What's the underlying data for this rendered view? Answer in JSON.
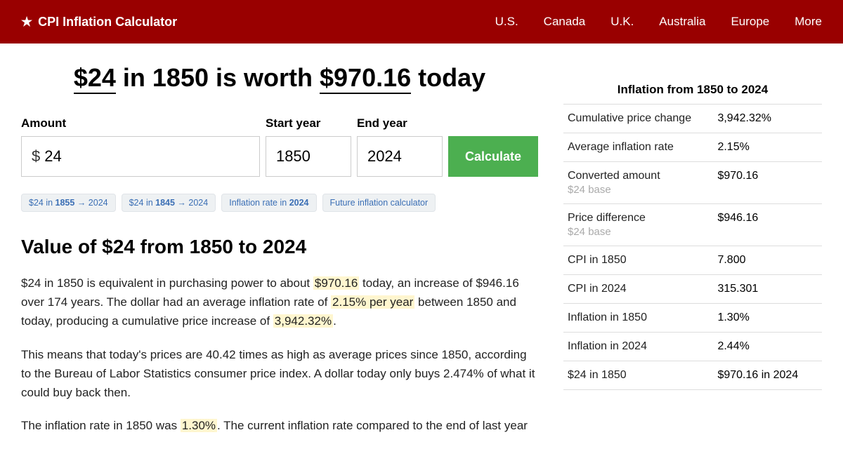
{
  "header": {
    "logo_text": "CPI Inflation Calculator",
    "nav": [
      "U.S.",
      "Canada",
      "U.K.",
      "Australia",
      "Europe",
      "More"
    ]
  },
  "title": {
    "amount": "$24",
    "mid": " in 1850 is worth ",
    "result": "$970.16",
    "tail": " today"
  },
  "form": {
    "amount_label": "Amount",
    "amount_value": "24",
    "start_label": "Start year",
    "start_value": "1850",
    "end_label": "End year",
    "end_value": "2024",
    "button": "Calculate"
  },
  "chips": [
    {
      "pre": "$24 in ",
      "bold": "1855",
      "post": " → 2024"
    },
    {
      "pre": "$24 in ",
      "bold": "1845",
      "post": " → 2024"
    },
    {
      "pre": "Inflation rate in ",
      "bold": "2024",
      "post": ""
    },
    {
      "pre": "Future inflation calculator",
      "bold": "",
      "post": ""
    }
  ],
  "section_title": "Value of $24 from 1850 to 2024",
  "para1": {
    "a": "$24 in 1850 is equivalent in purchasing power to about ",
    "h1": "$970.16",
    "b": " today, an increase of $946.16 over 174 years. The dollar had an average inflation rate of ",
    "h2": "2.15% per year",
    "c": " between 1850 and today, producing a cumulative price increase of ",
    "h3": "3,942.32%",
    "d": "."
  },
  "para2": "This means that today's prices are 40.42 times as high as average prices since 1850, according to the Bureau of Labor Statistics consumer price index. A dollar today only buys 2.474% of what it could buy back then.",
  "para3": {
    "a": "The inflation rate in 1850 was ",
    "h1": "1.30%",
    "b": ". The current inflation rate compared to the end of last year"
  },
  "sidebar": {
    "title": "Inflation from 1850 to 2024",
    "rows": [
      {
        "label": "Cumulative price change",
        "sublabel": "",
        "value": "3,942.32%"
      },
      {
        "label": "Average inflation rate",
        "sublabel": "",
        "value": "2.15%"
      },
      {
        "label": "Converted amount",
        "sublabel": "$24 base",
        "value": "$970.16"
      },
      {
        "label": "Price difference",
        "sublabel": "$24 base",
        "value": "$946.16"
      },
      {
        "label": "CPI in 1850",
        "sublabel": "",
        "value": "7.800"
      },
      {
        "label": "CPI in 2024",
        "sublabel": "",
        "value": "315.301"
      },
      {
        "label": "Inflation in 1850",
        "sublabel": "",
        "value": "1.30%"
      },
      {
        "label": "Inflation in 2024",
        "sublabel": "",
        "value": "2.44%"
      },
      {
        "label": "$24 in 1850",
        "sublabel": "",
        "value": "$970.16 in 2024"
      }
    ]
  },
  "colors": {
    "header_bg": "#990000",
    "button_bg": "#4caf50",
    "chip_bg": "#eef1f3",
    "chip_text": "#3b6fb5",
    "highlight_bg": "#fff6cf",
    "border": "#cccccc",
    "table_border": "#dddddd",
    "sublabel": "#aaaaaa"
  }
}
